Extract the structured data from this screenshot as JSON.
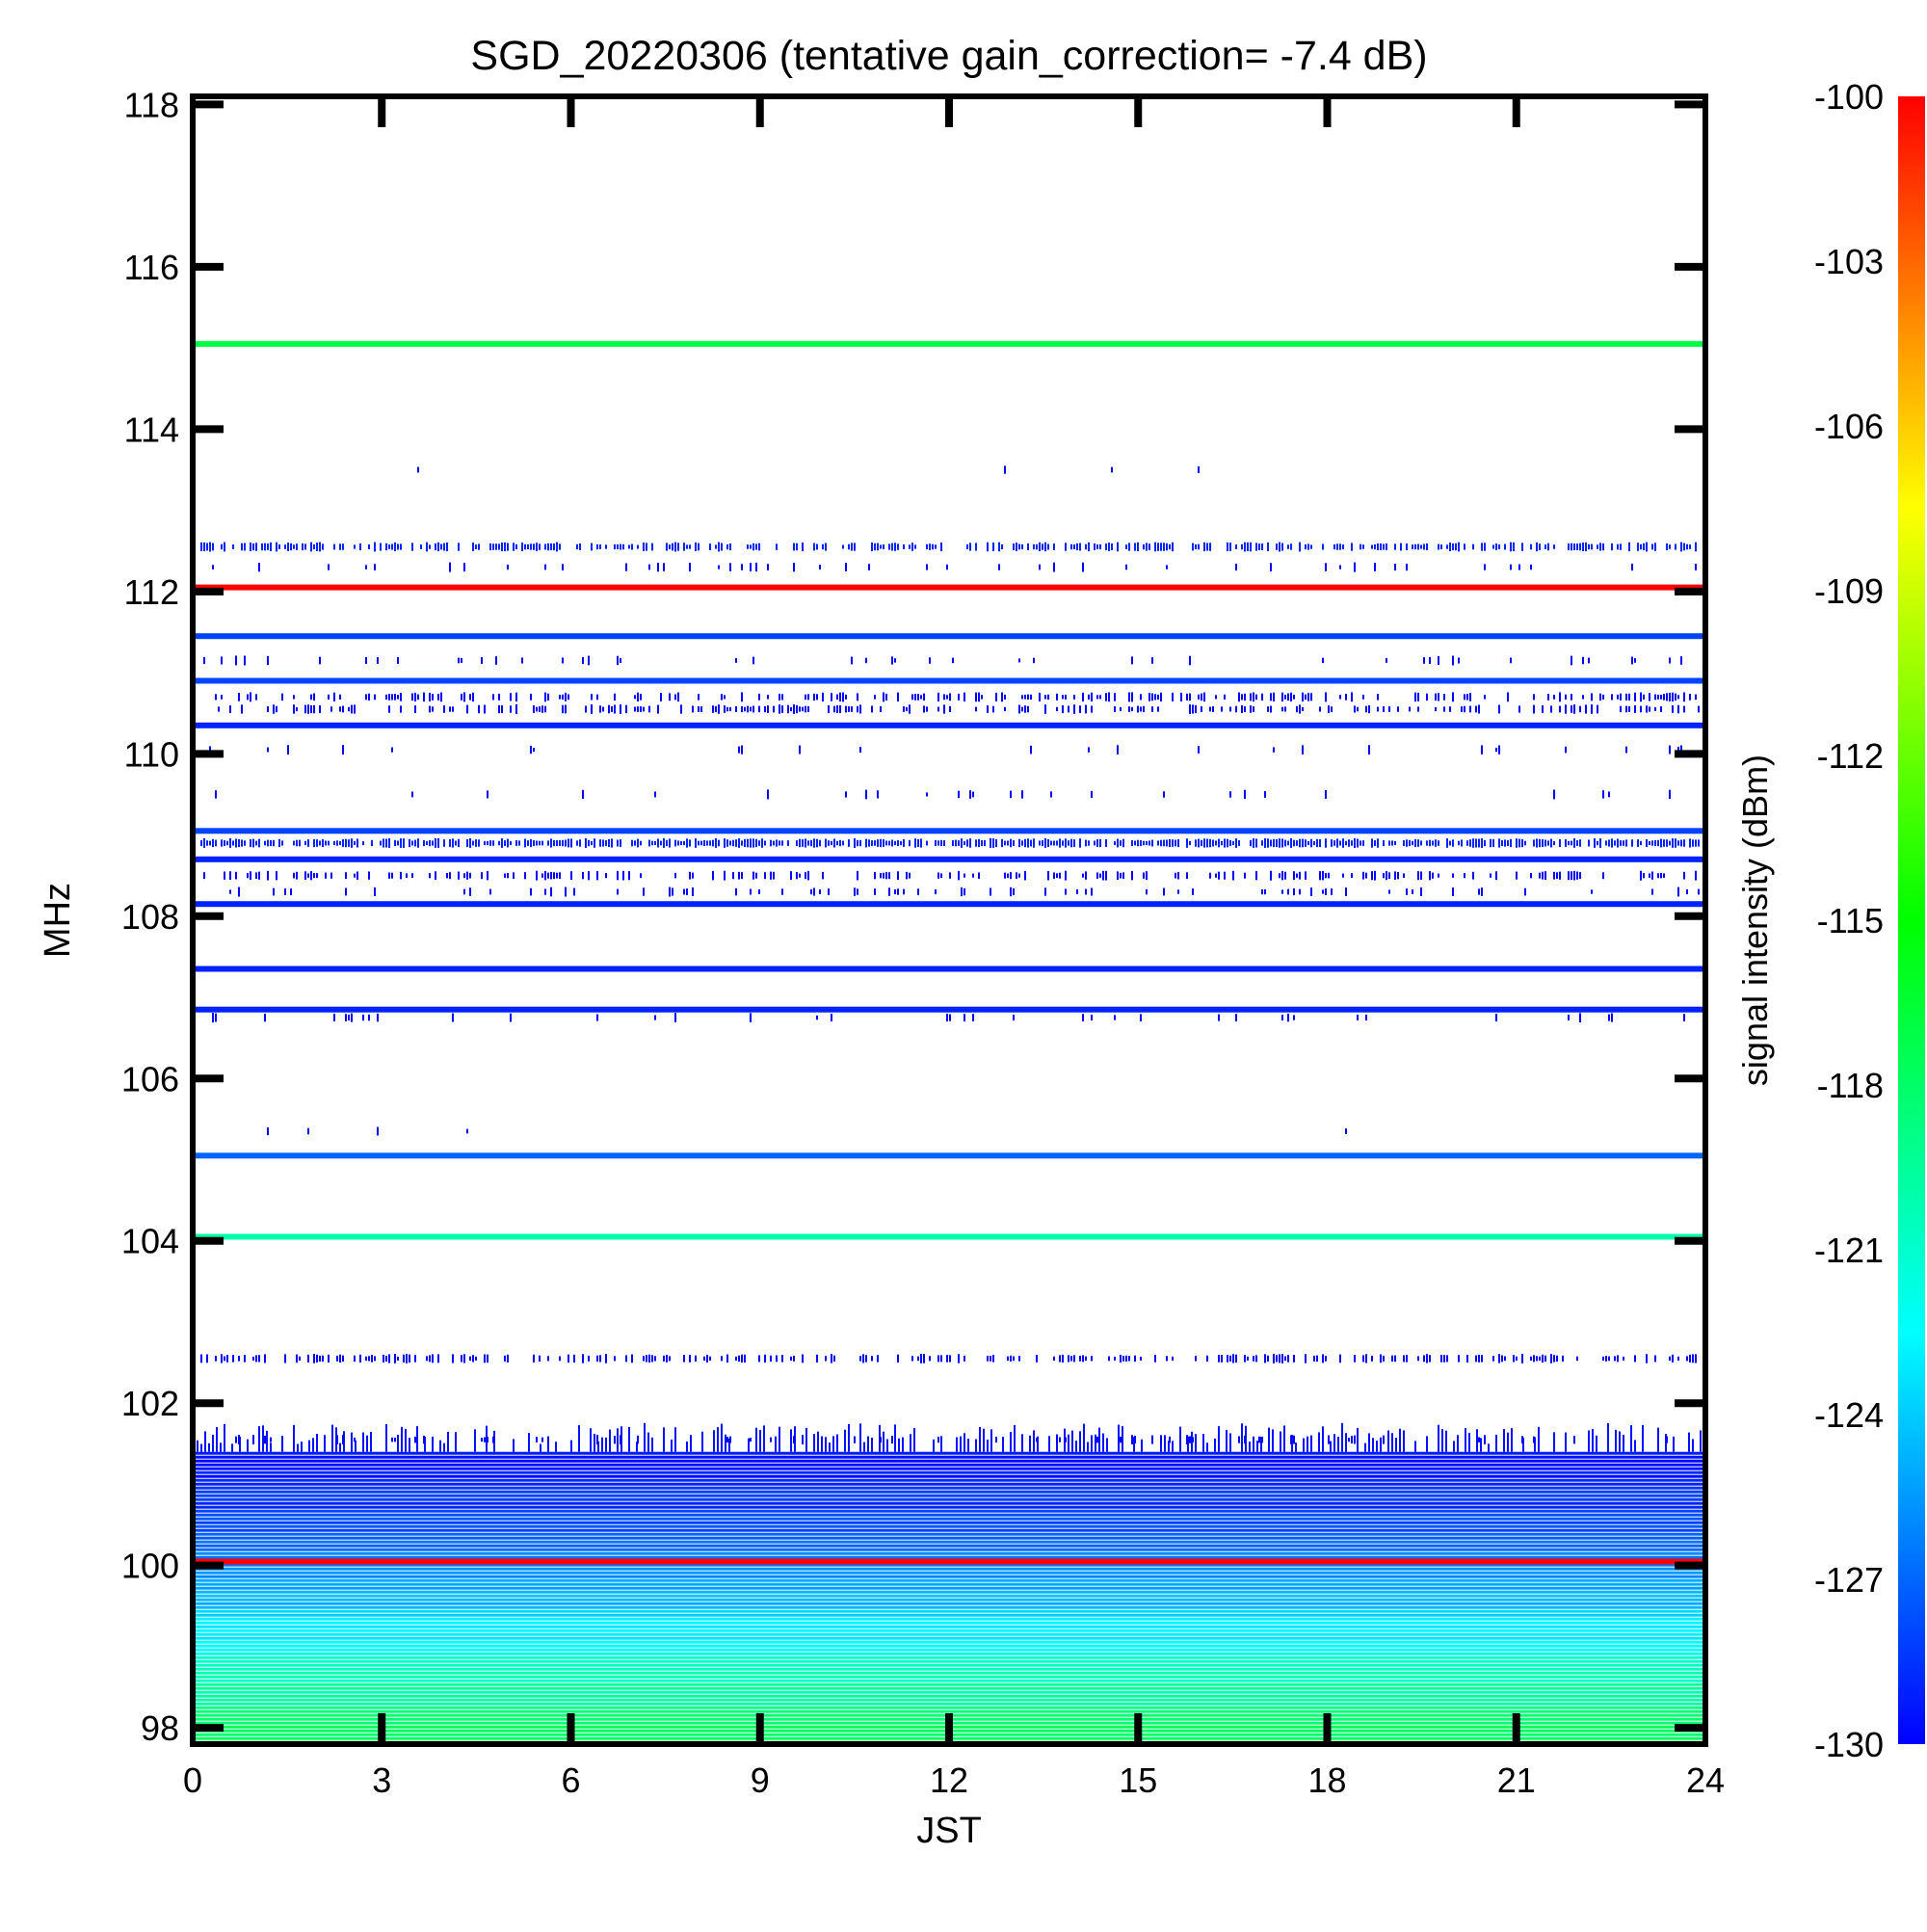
{
  "chart_data": {
    "type": "heatmap",
    "title": "SGD_20220306 (tentative gain_correction= -7.4 dB)",
    "xlabel": "JST",
    "ylabel": "MHz",
    "xlim": [
      0,
      24
    ],
    "ylim": [
      97.8,
      118.1
    ],
    "x_ticks": [
      0,
      3,
      6,
      9,
      12,
      15,
      18,
      21,
      24
    ],
    "y_ticks": [
      98,
      100,
      102,
      104,
      106,
      108,
      110,
      112,
      114,
      116,
      118
    ],
    "colorbar": {
      "label": "signal intensity (dBm)",
      "range": [
        -130,
        -100
      ],
      "ticks": [
        -100,
        -103,
        -106,
        -109,
        -112,
        -115,
        -118,
        -121,
        -124,
        -127,
        -130
      ],
      "colors": [
        "#0000ff",
        "#0080ff",
        "#00ffff",
        "#00ff80",
        "#00ff00",
        "#80ff00",
        "#ffff00",
        "#ff8000",
        "#ff0000"
      ]
    },
    "continuous_lines": [
      {
        "freq_mhz": 115.05,
        "dbm": -117
      },
      {
        "freq_mhz": 112.05,
        "dbm": -100
      },
      {
        "freq_mhz": 111.45,
        "dbm": -128
      },
      {
        "freq_mhz": 110.9,
        "dbm": -128
      },
      {
        "freq_mhz": 110.35,
        "dbm": -129
      },
      {
        "freq_mhz": 109.05,
        "dbm": -128
      },
      {
        "freq_mhz": 108.7,
        "dbm": -129
      },
      {
        "freq_mhz": 108.15,
        "dbm": -129
      },
      {
        "freq_mhz": 107.35,
        "dbm": -129
      },
      {
        "freq_mhz": 106.85,
        "dbm": -129
      },
      {
        "freq_mhz": 105.05,
        "dbm": -127
      },
      {
        "freq_mhz": 104.05,
        "dbm": -120
      },
      {
        "freq_mhz": 100.05,
        "dbm": -100
      }
    ],
    "intermittent_bands": [
      {
        "freq_mhz": 113.5,
        "dbm": -130,
        "density": 0.01
      },
      {
        "freq_mhz": 112.55,
        "dbm": -129,
        "density": 0.55
      },
      {
        "freq_mhz": 112.3,
        "dbm": -130,
        "density": 0.08
      },
      {
        "freq_mhz": 111.15,
        "dbm": -130,
        "density": 0.06
      },
      {
        "freq_mhz": 110.7,
        "dbm": -130,
        "density": 0.35
      },
      {
        "freq_mhz": 110.55,
        "dbm": -130,
        "density": 0.35
      },
      {
        "freq_mhz": 110.05,
        "dbm": -130,
        "density": 0.06
      },
      {
        "freq_mhz": 109.5,
        "dbm": -130,
        "density": 0.05
      },
      {
        "freq_mhz": 108.9,
        "dbm": -129,
        "density": 0.8
      },
      {
        "freq_mhz": 108.5,
        "dbm": -130,
        "density": 0.35
      },
      {
        "freq_mhz": 108.3,
        "dbm": -130,
        "density": 0.15
      },
      {
        "freq_mhz": 106.75,
        "dbm": -130,
        "density": 0.08
      },
      {
        "freq_mhz": 105.35,
        "dbm": -130,
        "density": 0.01
      },
      {
        "freq_mhz": 102.55,
        "dbm": -130,
        "density": 0.45
      },
      {
        "freq_mhz": 101.55,
        "dbm": -130,
        "density": 0.15
      }
    ],
    "broadband_region": {
      "freq_range_mhz": [
        97.8,
        101.4
      ],
      "dbm_profile": [
        {
          "freq_mhz": 101.4,
          "dbm": -130
        },
        {
          "freq_mhz": 100.6,
          "dbm": -128
        },
        {
          "freq_mhz": 100.0,
          "dbm": -126
        },
        {
          "freq_mhz": 99.2,
          "dbm": -123
        },
        {
          "freq_mhz": 98.5,
          "dbm": -120
        },
        {
          "freq_mhz": 97.8,
          "dbm": -117
        }
      ]
    }
  }
}
